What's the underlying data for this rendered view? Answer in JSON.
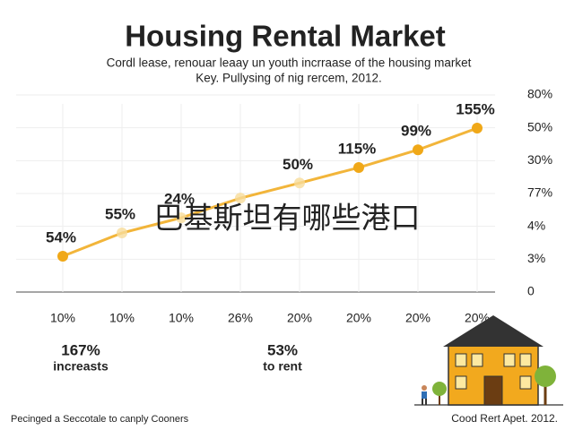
{
  "chart_data": {
    "type": "line",
    "title": "Housing Rental Market",
    "subtitle_lines": [
      "Cordl lease, renouar leaay un youth incrraase of the housing market",
      "Key. Pullysing of nig rercem, 2012."
    ],
    "categories": [
      "10%",
      "10%",
      "10%",
      "26%",
      "20%",
      "20%",
      "20%",
      "20%"
    ],
    "values": [
      1.09,
      1.8,
      2.26,
      2.86,
      3.32,
      3.79,
      4.33,
      4.99
    ],
    "point_labels": [
      "54%",
      "55%",
      "24%",
      null,
      "50%",
      "115%",
      "99%",
      "155%"
    ],
    "color": "#f0a818",
    "ylim": [
      0,
      6
    ],
    "yticks": [
      {
        "value": 0,
        "label": "0"
      },
      {
        "value": 1,
        "label": "3%"
      },
      {
        "value": 2,
        "label": "4%"
      },
      {
        "value": 3,
        "label": "77%"
      },
      {
        "value": 4,
        "label": "30%"
      },
      {
        "value": 5,
        "label": "50%"
      },
      {
        "value": 6,
        "label": "80%"
      }
    ],
    "grid": true,
    "overlay_text": "巴基斯坦有哪些港口",
    "stats": [
      {
        "value": "167%",
        "label": "increasts"
      },
      {
        "value": "53%",
        "label": "to rent"
      }
    ],
    "footer_left": "Pecinged a Seccotale to canply Cooners",
    "footer_right": "Cood Rert Apet. 2012."
  }
}
